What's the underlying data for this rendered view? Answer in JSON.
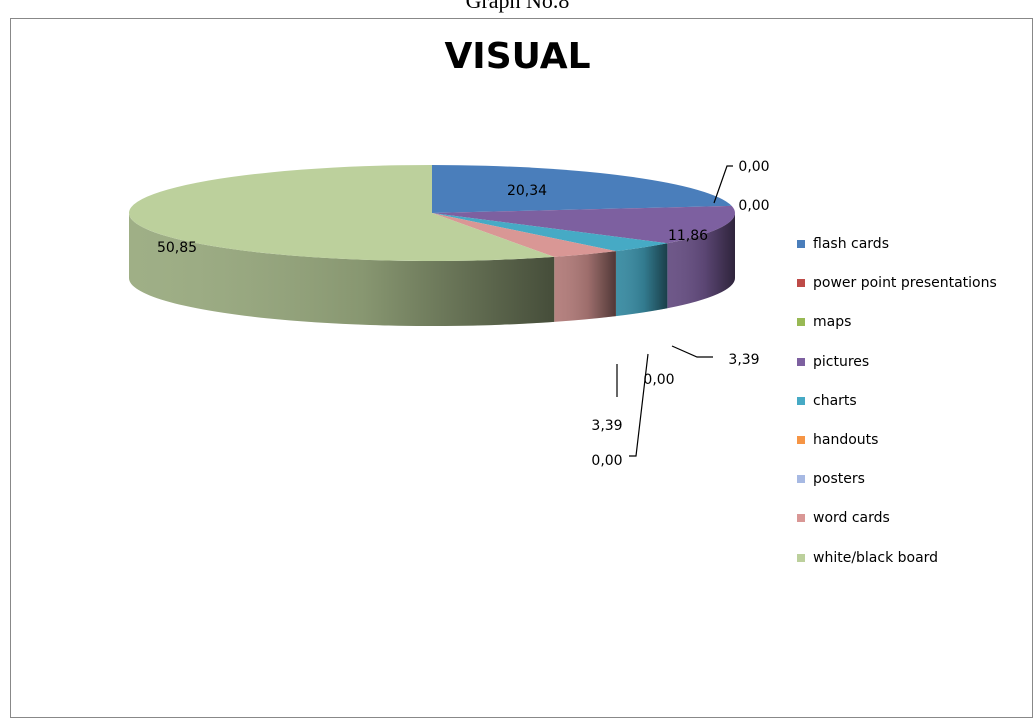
{
  "header": {
    "text": "Graph No.8"
  },
  "chart_data": {
    "type": "pie",
    "title": "VISUAL",
    "categories": [
      "flash cards",
      "power point presentations",
      "maps",
      "pictures",
      "charts",
      "handouts",
      "posters",
      "word cards",
      "white/black board"
    ],
    "values": [
      20.34,
      0.0,
      0.0,
      11.86,
      3.39,
      0.0,
      0.0,
      3.39,
      50.85
    ],
    "data_labels": [
      "20,34",
      "0,00",
      "0,00",
      "11,86",
      "3,39",
      "0,00",
      "0,00",
      "3,39",
      "50,85"
    ],
    "colors": [
      "#4A7EBB",
      "#BE4B48",
      "#98B954",
      "#7D60A0",
      "#46AAC5",
      "#F69545",
      "#A7B9E3",
      "#D99795",
      "#BCD09C"
    ],
    "style": "3d-pie",
    "legend_position": "right"
  }
}
